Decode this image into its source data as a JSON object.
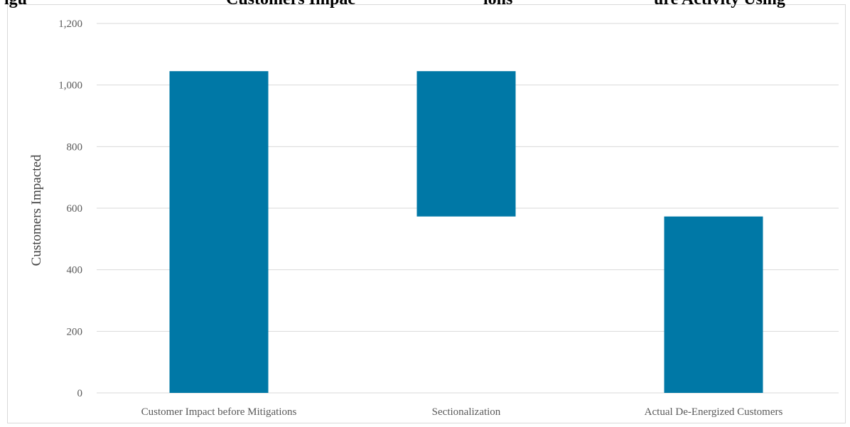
{
  "title_visible_fragments": [
    "igu",
    "Customers Impac",
    "ions",
    "ure Activity Using"
  ],
  "chart_data": {
    "type": "bar",
    "subtype": "waterfall",
    "title": "",
    "xlabel": "",
    "ylabel": "Customers Impacted",
    "ylim": [
      0,
      1200
    ],
    "yticks": [
      0,
      200,
      400,
      600,
      800,
      1000,
      1200
    ],
    "ytick_labels": [
      "0",
      "200",
      "400",
      "600",
      "800",
      "1,000",
      "1,200"
    ],
    "categories": [
      "Customer Impact before Mitigations",
      "Sectionalization",
      "Actual De-Energized Customers"
    ],
    "bars": [
      {
        "category": "Customer Impact before Mitigations",
        "start": 0,
        "end": 1045
      },
      {
        "category": "Sectionalization",
        "start": 573,
        "end": 1045
      },
      {
        "category": "Actual De-Energized Customers",
        "start": 0,
        "end": 573
      }
    ],
    "grid": true,
    "legend": "none",
    "bar_color": "#0078a6",
    "gridline_color": "#d9d9d9"
  }
}
